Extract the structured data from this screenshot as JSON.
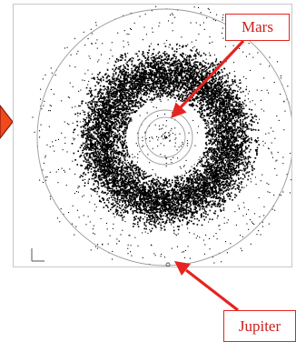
{
  "labels": {
    "mars": "Mars",
    "jupiter": "Jupiter"
  },
  "colors": {
    "annotation": "#e52420",
    "annotation_text": "#cc1f1a",
    "particles": "#000000",
    "orbit_lines": "#9a9a9a",
    "pointer_fill": "#f04a1a",
    "pointer_stroke": "#8a1a10"
  }
}
